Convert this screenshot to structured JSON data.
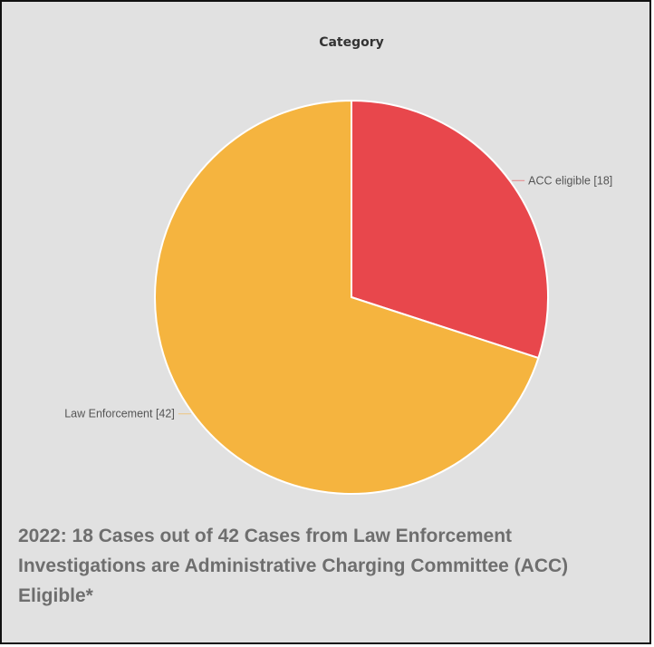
{
  "chart_data": {
    "type": "pie",
    "title": "Category",
    "slices": [
      {
        "label": "ACC eligible",
        "value": 18,
        "color": "#e8474c"
      },
      {
        "label": "Law Enforcement",
        "value": 42,
        "color": "#f5b43f"
      }
    ],
    "slice_labels": [
      "ACC eligible [18]",
      "Law Enforcement [42]"
    ]
  },
  "caption": "2022:  18 Cases out of 42 Cases from Law Enforcement Investigations are Administrative Charging Committee (ACC) Eligible*"
}
